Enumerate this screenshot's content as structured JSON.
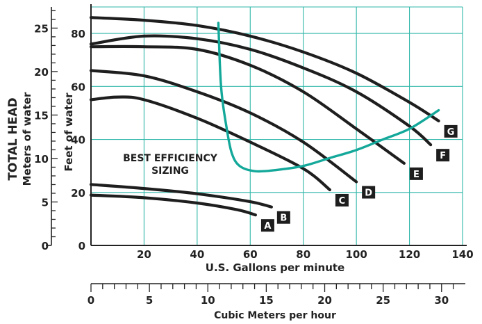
{
  "chart_data": {
    "type": "line",
    "xlabel": "U.S. Gallons per minute",
    "ylabel": "Feet of water",
    "xlim": [
      0,
      140
    ],
    "ylim": [
      0,
      90
    ],
    "x_ticks": [
      20,
      40,
      60,
      80,
      100,
      120,
      140
    ],
    "y_ticks": [
      0,
      20,
      40,
      60,
      80
    ],
    "grid": true,
    "secondary_y": {
      "label_line1": "TOTAL HEAD",
      "label_line2": "Meters of  water",
      "ticks": [
        0,
        5,
        10,
        15,
        20,
        25
      ],
      "units_per_primary": 0.3048
    },
    "secondary_x": {
      "label": "Cubic Meters per hour",
      "ticks": [
        0,
        5,
        10,
        15,
        20,
        25,
        30
      ],
      "factor_to_primary": 4.403
    },
    "annotation": [
      "BEST EFFICIENCY",
      "SIZING"
    ],
    "series": [
      {
        "name": "A",
        "x": [
          0,
          20,
          40,
          55,
          62
        ],
        "y": [
          19,
          18,
          16,
          13.5,
          11.5
        ]
      },
      {
        "name": "B",
        "x": [
          0,
          20,
          40,
          60,
          68
        ],
        "y": [
          23,
          21.5,
          19.5,
          16.5,
          14.5
        ]
      },
      {
        "name": "C",
        "x": [
          0,
          10,
          20,
          40,
          60,
          80,
          90
        ],
        "y": [
          55,
          56,
          55,
          48,
          39,
          29,
          21
        ]
      },
      {
        "name": "D",
        "x": [
          0,
          20,
          40,
          60,
          80,
          100
        ],
        "y": [
          66,
          64,
          58,
          50,
          39,
          24
        ]
      },
      {
        "name": "E",
        "x": [
          0,
          20,
          40,
          60,
          80,
          100,
          118
        ],
        "y": [
          75,
          75,
          74,
          68,
          58,
          44,
          31
        ]
      },
      {
        "name": "F",
        "x": [
          0,
          20,
          40,
          60,
          80,
          100,
          120,
          128
        ],
        "y": [
          76,
          79,
          78,
          74,
          67,
          58,
          45,
          38
        ]
      },
      {
        "name": "G",
        "x": [
          0,
          20,
          40,
          60,
          80,
          100,
          120,
          131
        ],
        "y": [
          86,
          85,
          83,
          79,
          73,
          65,
          54,
          47
        ]
      }
    ],
    "efficiency_curve": {
      "x": [
        48,
        49,
        51,
        53,
        56,
        62,
        70,
        80,
        90,
        100,
        110,
        120,
        131
      ],
      "y": [
        84,
        60,
        45,
        35,
        30,
        28,
        28.5,
        30,
        33,
        36,
        40,
        44,
        51
      ]
    },
    "series_color": "#1e1e1e",
    "efficiency_color": "#13a89a",
    "grid_color": "#2fb7a8"
  }
}
